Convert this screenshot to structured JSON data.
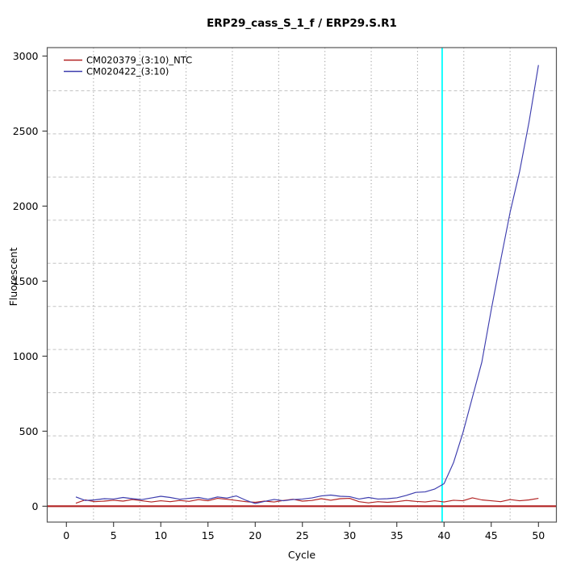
{
  "chart_data": {
    "type": "line",
    "title": "ERP29_cass_S_1_f / ERP29.S.R1",
    "xlabel": "Cycle",
    "ylabel": "Fluorescent",
    "xlim": [
      -2.03,
      51.9
    ],
    "ylim": [
      -106,
      3056
    ],
    "xticks": [
      0,
      5,
      10,
      15,
      20,
      25,
      30,
      35,
      40,
      45,
      50
    ],
    "yticks": [
      0,
      500,
      1000,
      1500,
      2000,
      2500,
      3000
    ],
    "grid": {
      "divisions": 11,
      "v_color": "#999999",
      "h_color": "#c4c4c4"
    },
    "legend_position": "top-left",
    "x": [
      1,
      2,
      3,
      4,
      5,
      6,
      7,
      8,
      9,
      10,
      11,
      12,
      13,
      14,
      15,
      16,
      17,
      18,
      19,
      20,
      21,
      22,
      23,
      24,
      25,
      26,
      27,
      28,
      29,
      30,
      31,
      32,
      33,
      34,
      35,
      36,
      37,
      38,
      39,
      40,
      41,
      42,
      43,
      44,
      45,
      46,
      47,
      48,
      49,
      50
    ],
    "series": [
      {
        "name": "CM020379_(3:10)_NTC",
        "color": "#b22222",
        "values": [
          20,
          42,
          30,
          34,
          40,
          34,
          44,
          36,
          28,
          36,
          30,
          38,
          32,
          44,
          36,
          52,
          46,
          38,
          30,
          26,
          34,
          28,
          38,
          46,
          34,
          38,
          50,
          40,
          50,
          52,
          30,
          22,
          30,
          26,
          30,
          38,
          32,
          28,
          36,
          28,
          40,
          36,
          56,
          42,
          36,
          30,
          44,
          36,
          42,
          52
        ]
      },
      {
        "name": "CM020422_(3:10)",
        "color": "#3d3dae",
        "values": [
          62,
          38,
          42,
          50,
          48,
          58,
          50,
          44,
          55,
          66,
          58,
          46,
          52,
          58,
          46,
          62,
          54,
          68,
          40,
          18,
          32,
          45,
          36,
          44,
          48,
          55,
          68,
          74,
          66,
          64,
          48,
          58,
          48,
          50,
          56,
          72,
          92,
          95,
          114,
          150,
          290,
          490,
          725,
          960,
          1310,
          1640,
          1960,
          2230,
          2560,
          2940
        ]
      }
    ],
    "threshold_line": {
      "y": 0,
      "color": "#b22222"
    },
    "marker_line": {
      "x": 39.8,
      "color": "#00ffff"
    }
  }
}
